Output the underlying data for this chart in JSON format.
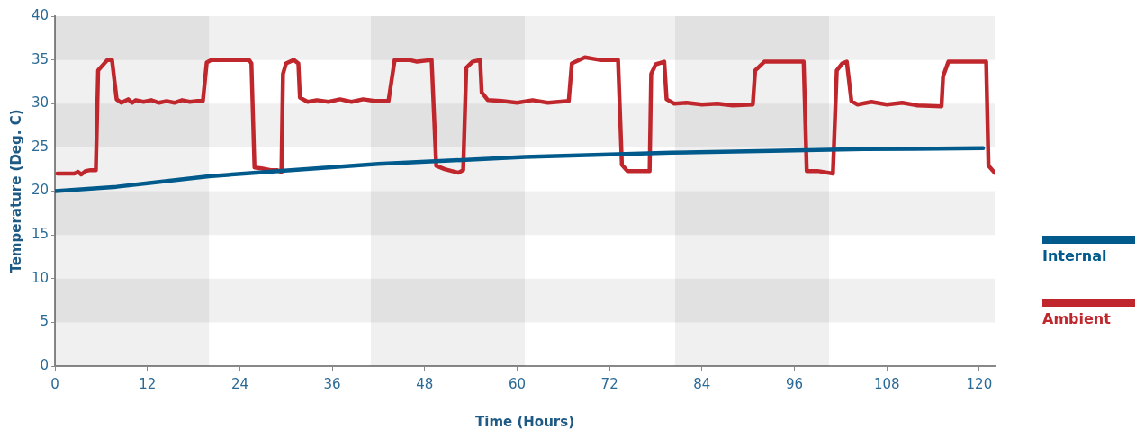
{
  "chart_data": {
    "type": "line",
    "xlabel": "Time (Hours)",
    "ylabel": "Temperature (Deg. C)",
    "xlim": [
      0,
      122
    ],
    "xticks": [
      0,
      12,
      24,
      36,
      48,
      60,
      72,
      84,
      96,
      108,
      120
    ],
    "ylim": [
      0,
      40
    ],
    "yticks": [
      0,
      5,
      10,
      15,
      20,
      25,
      30,
      35,
      40
    ],
    "grid": false,
    "legend": "right",
    "marker": "none",
    "line_style": "solid",
    "bands": [
      {
        "axis": "y",
        "from": 35,
        "to": 40,
        "color": "#f0f0f0"
      },
      {
        "axis": "y",
        "from": 25,
        "to": 30,
        "color": "#f0f0f0"
      },
      {
        "axis": "y",
        "from": 15,
        "to": 20,
        "color": "#f0f0f0"
      },
      {
        "axis": "y",
        "from": 5,
        "to": 10,
        "color": "#f0f0f0"
      },
      {
        "axis": "x",
        "from": 0,
        "to": 20,
        "color": "#f0f0f0"
      },
      {
        "axis": "x",
        "from": 41,
        "to": 61,
        "color": "#f0f0f0"
      },
      {
        "axis": "x",
        "from": 80.5,
        "to": 100.5,
        "color": "#f0f0f0"
      }
    ],
    "series": [
      {
        "name": "Internal",
        "color": "#005a8c",
        "x": [
          0,
          8,
          12,
          20,
          29,
          42,
          61,
          80,
          93,
          105,
          120.5
        ],
        "values": [
          20,
          20.5,
          20.9,
          21.7,
          22.3,
          23.1,
          23.9,
          24.4,
          24.6,
          24.8,
          24.9
        ]
      },
      {
        "name": "Ambient",
        "color": "#c0272d",
        "x": [
          0.3,
          2.5,
          3,
          3.4,
          4,
          4.6,
          5.3,
          5.6,
          6.8,
          7.4,
          8,
          8.6,
          9.5,
          10,
          10.5,
          11.5,
          12.5,
          13.5,
          14.5,
          15.5,
          16.5,
          17.5,
          18.5,
          19.2,
          19.7,
          20.3,
          25.2,
          25.5,
          25.9,
          26.8,
          28,
          28.8,
          29.4,
          29.6,
          30,
          31,
          31.6,
          31.8,
          32.8,
          34,
          35.5,
          37,
          38.5,
          40,
          41.5,
          43.3,
          44.1,
          46,
          47,
          48.9,
          49.5,
          50.6,
          52.4,
          53,
          53.4,
          54.2,
          55.2,
          55.4,
          56.2,
          58,
          60,
          62,
          64,
          66.7,
          67.1,
          68.8,
          70.7,
          73.1,
          73.6,
          74.3,
          77.2,
          77.4,
          78,
          79.1,
          79.4,
          80.4,
          82,
          84,
          86,
          88,
          90.6,
          90.9,
          92.1,
          94,
          97.2,
          97.6,
          99,
          101,
          101.5,
          102.2,
          102.8,
          103.4,
          104.2,
          106,
          108,
          110,
          112,
          115.1,
          115.3,
          116,
          118,
          120.9,
          121.2,
          122
        ],
        "values": [
          22,
          22,
          22.2,
          21.9,
          22.3,
          22.4,
          22.4,
          33.8,
          35,
          35,
          30.5,
          30.1,
          30.5,
          30.1,
          30.4,
          30.2,
          30.4,
          30.1,
          30.3,
          30.1,
          30.4,
          30.2,
          30.3,
          30.3,
          34.7,
          35,
          35,
          34.6,
          22.7,
          22.6,
          22.4,
          22.4,
          22.2,
          33.4,
          34.6,
          35,
          34.6,
          30.7,
          30.2,
          30.4,
          30.2,
          30.5,
          30.2,
          30.5,
          30.3,
          30.3,
          35,
          35,
          34.8,
          35,
          22.9,
          22.5,
          22.1,
          22.4,
          34.1,
          34.8,
          35,
          31.3,
          30.4,
          30.3,
          30.1,
          30.4,
          30.1,
          30.3,
          34.6,
          35.3,
          35,
          35,
          23,
          22.3,
          22.3,
          33.4,
          34.5,
          34.8,
          30.5,
          30,
          30.1,
          29.9,
          30,
          29.8,
          29.9,
          33.8,
          34.8,
          34.8,
          34.8,
          22.3,
          22.3,
          22,
          33.8,
          34.6,
          34.8,
          30.3,
          29.9,
          30.2,
          29.9,
          30.1,
          29.8,
          29.7,
          33.1,
          34.8,
          34.8,
          34.8,
          22.9,
          22.1
        ]
      }
    ]
  }
}
